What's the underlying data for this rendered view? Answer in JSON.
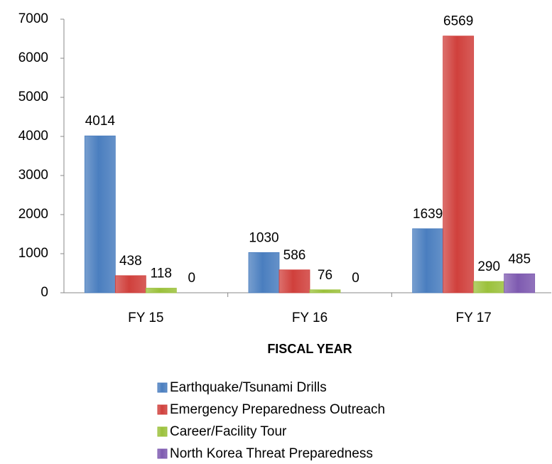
{
  "chart_data": {
    "type": "bar",
    "xlabel": "FISCAL YEAR",
    "categories": [
      "FY 15",
      "FY 16",
      "FY 17"
    ],
    "series": [
      {
        "name": "Earthquake/Tsunami Drills",
        "color": "#4a7ebf",
        "values": [
          4014,
          1030,
          1639
        ]
      },
      {
        "name": "Emergency Preparedness Outreach",
        "color": "#d0403c",
        "values": [
          438,
          586,
          6569
        ]
      },
      {
        "name": "Career/Facility Tour",
        "color": "#9bc13b",
        "values": [
          118,
          76,
          290
        ]
      },
      {
        "name": "North Korea Threat Preparedness",
        "color": "#7e5ab0",
        "values": [
          0,
          0,
          485
        ]
      }
    ],
    "ylim": [
      0,
      7000
    ],
    "yticks": [
      0,
      1000,
      2000,
      3000,
      4000,
      5000,
      6000,
      7000
    ],
    "grid": false,
    "legend": "bottom"
  }
}
